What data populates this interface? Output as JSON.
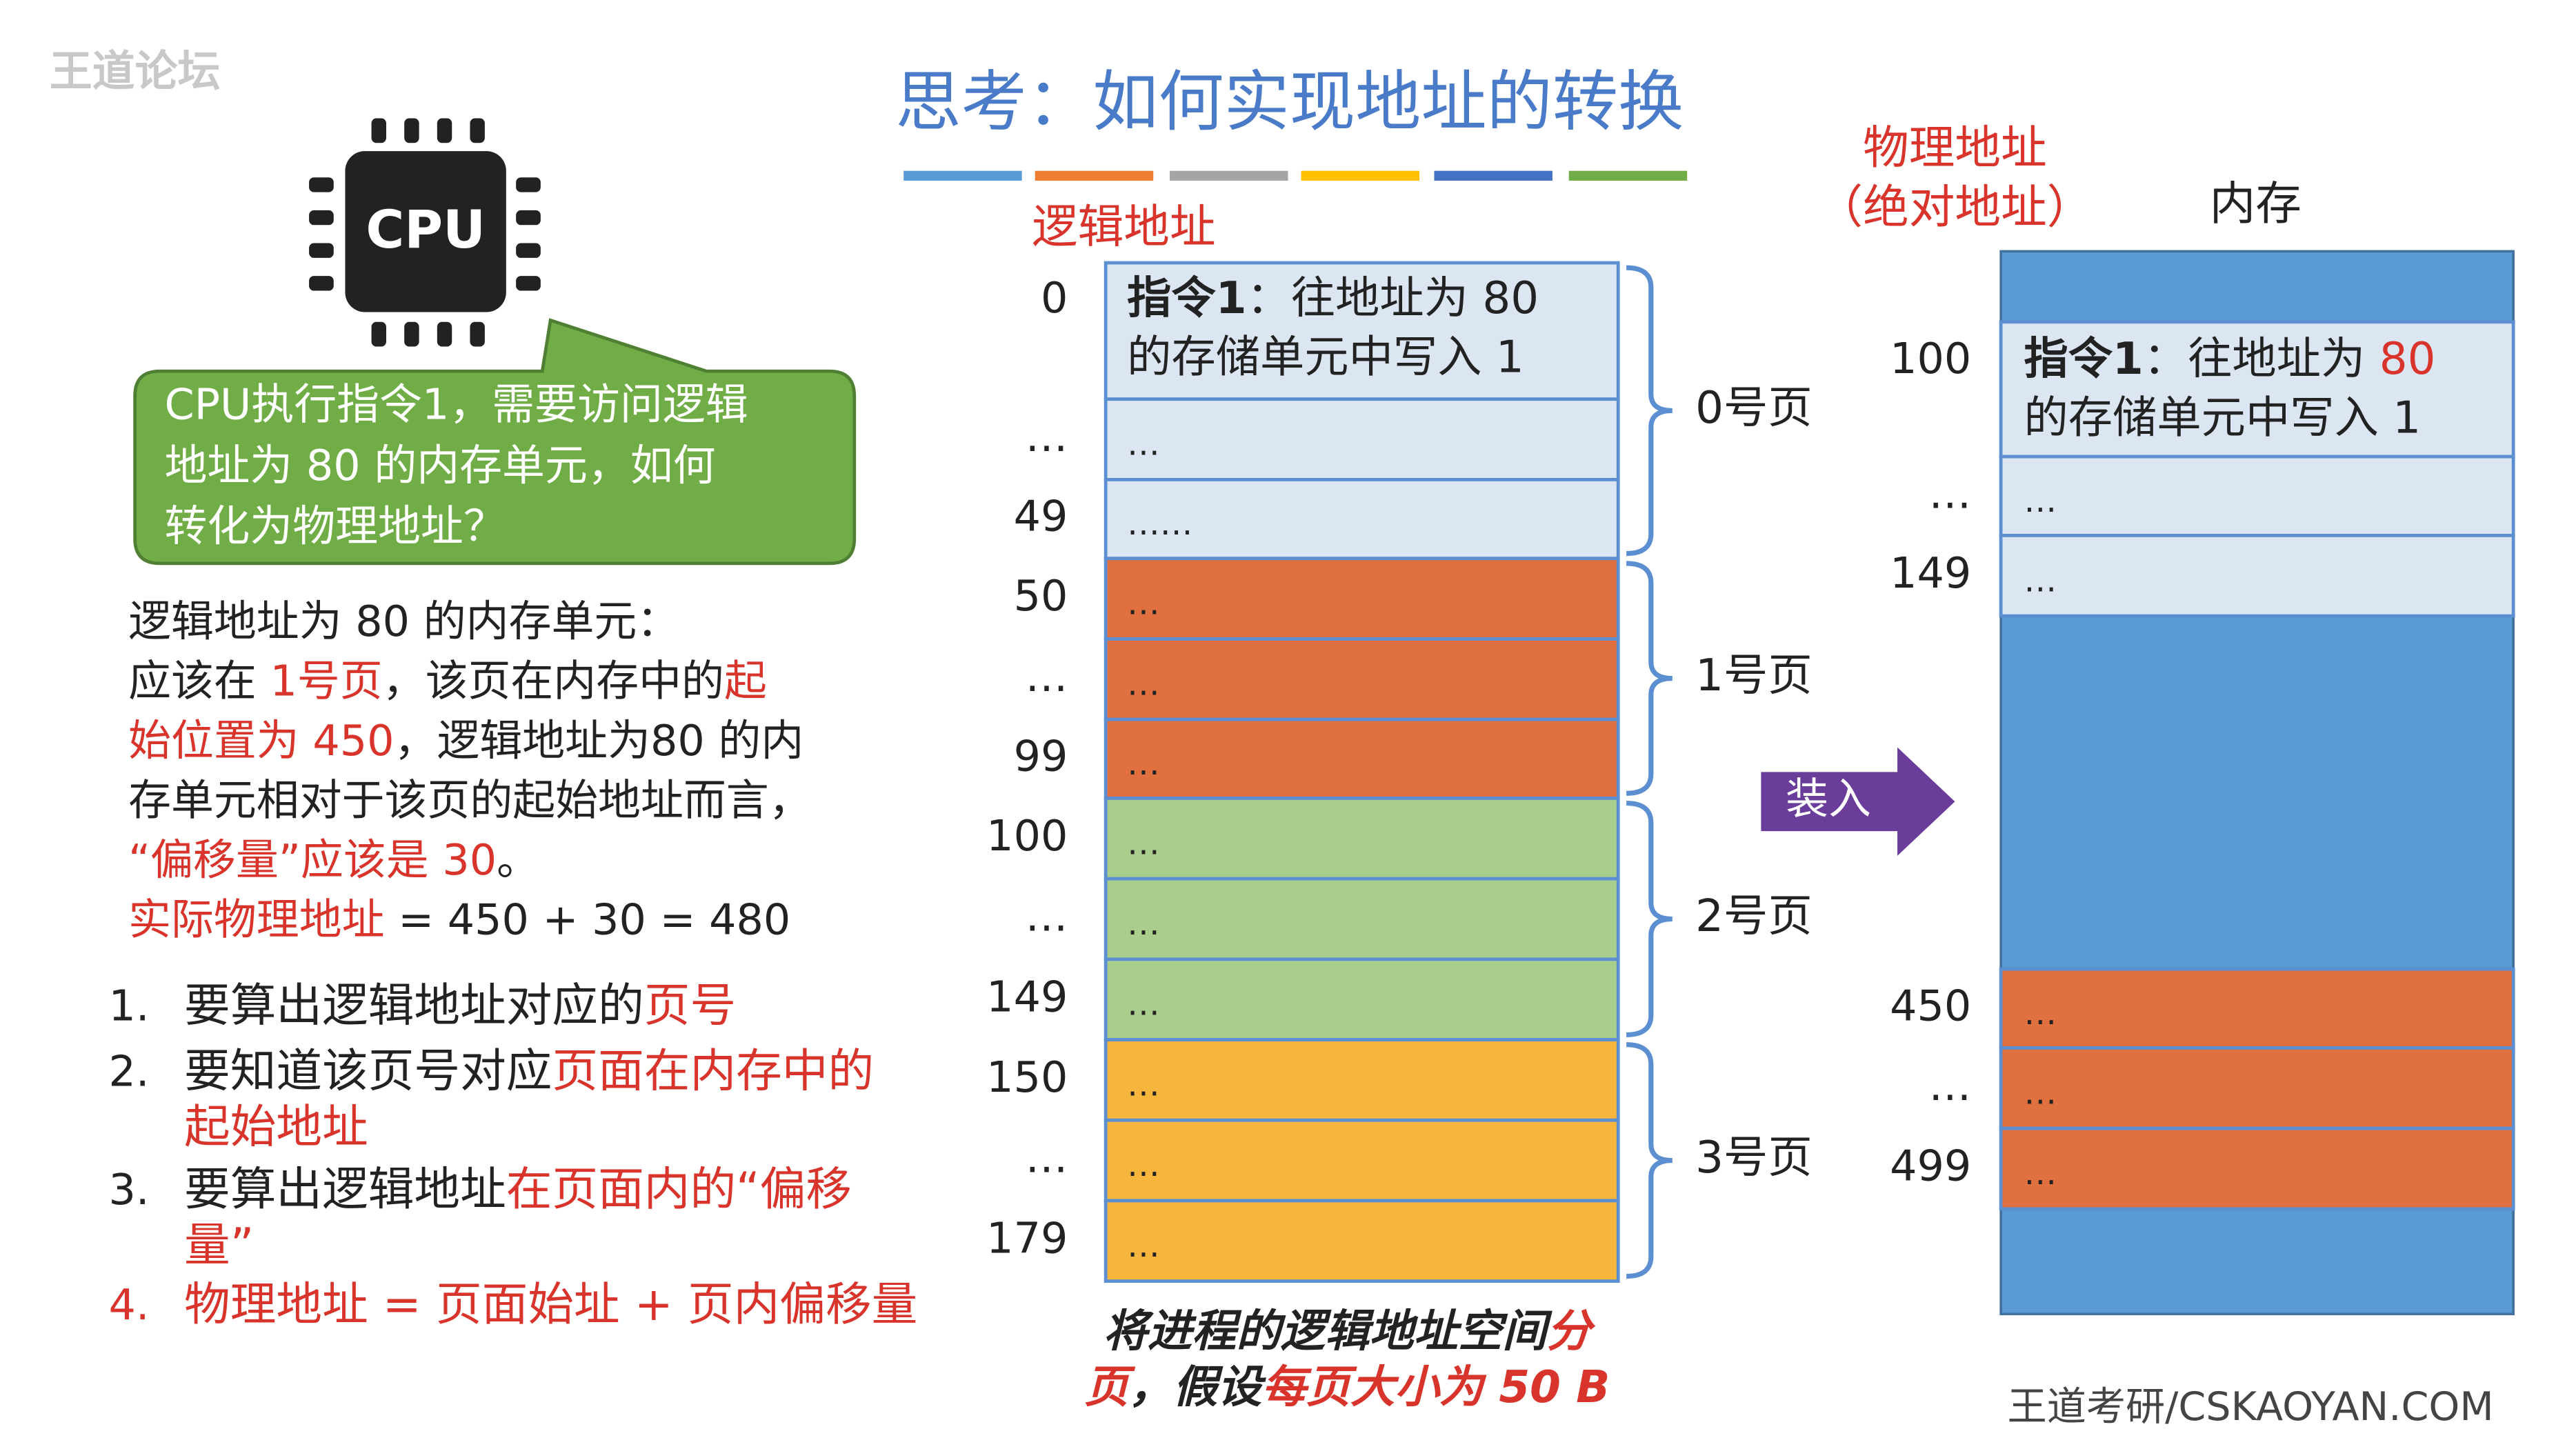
{
  "watermark": "王道论坛",
  "title": "思考：如何实现地址的转换",
  "title_bars": [
    "#5b9bd5",
    "#ed7d31",
    "#a5a5a5",
    "#ffc000",
    "#4472c4",
    "#70ad47"
  ],
  "cpu": {
    "label": "CPU",
    "bubble": [
      "CPU执行指令1，需要访问逻辑",
      "地址为 80 的内存单元，如何",
      "转化为物理地址？"
    ]
  },
  "explanation": [
    [
      "逻辑地址为 80 的内存单元："
    ],
    [
      "应该在 ",
      {
        "text": "1号页",
        "color": "#d9342b"
      },
      "，该页在内存中的",
      {
        "text": "起",
        "color": "#d9342b"
      }
    ],
    [
      {
        "text": "始位置为 450",
        "color": "#d9342b"
      },
      "，逻辑地址为80 的内"
    ],
    [
      "存单元相对于该页的起始地址而言，"
    ],
    [
      {
        "text": "“偏移量”应该是 30",
        "color": "#d9342b"
      },
      "。"
    ],
    [
      {
        "text": "实际物理地址",
        "color": "#d9342b"
      },
      " = 450 + 30 = 480"
    ]
  ],
  "steps": [
    {
      "number": "1.",
      "lines": [
        [
          "要算出逻辑地址对应的",
          {
            "text": "页号",
            "color": "#d9342b"
          }
        ]
      ]
    },
    {
      "number": "2.",
      "lines": [
        [
          "要知道该页号对应",
          {
            "text": "页面在内存中的",
            "color": "#d9342b"
          }
        ],
        [
          {
            "text": "起始地址",
            "color": "#d9342b"
          }
        ]
      ]
    },
    {
      "number": "3.",
      "lines": [
        [
          "要算出逻辑地址",
          {
            "text": "在页面内的“偏移",
            "color": "#d9342b"
          }
        ],
        [
          {
            "text": "量”",
            "color": "#d9342b"
          }
        ]
      ]
    },
    {
      "number": "4.",
      "color": "#d9342b",
      "lines": [
        [
          {
            "text": "物理地址 = 页面始址 + 页内偏移量",
            "color": "#d9342b"
          }
        ]
      ]
    }
  ],
  "logical": {
    "heading": "逻辑地址",
    "rows": [
      {
        "address": "0",
        "color": "#dce6f2",
        "lines": [
          [
            {
              "text": "指令1",
              "bold": true
            },
            "：往地址为 80"
          ],
          [
            "的存储单元中写入 1"
          ]
        ]
      },
      {
        "address": "…",
        "color": "#dce6f2",
        "lines": [
          [
            "…"
          ]
        ]
      },
      {
        "address": "49",
        "color": "#dce6f2",
        "lines": [
          [
            "……"
          ]
        ]
      },
      {
        "address": "50",
        "color": "#e07040",
        "lines": [
          [
            "…"
          ]
        ]
      },
      {
        "address": "…",
        "color": "#e07040",
        "lines": [
          [
            "…"
          ]
        ]
      },
      {
        "address": "99",
        "color": "#e07040",
        "lines": [
          [
            "…"
          ]
        ]
      },
      {
        "address": "100",
        "color": "#a9cd8c",
        "lines": [
          [
            "…"
          ]
        ]
      },
      {
        "address": "…",
        "color": "#a9cd8c",
        "lines": [
          [
            "…"
          ]
        ]
      },
      {
        "address": "149",
        "color": "#a9cd8c",
        "lines": [
          [
            "…"
          ]
        ]
      },
      {
        "address": "150",
        "color": "#f6b53c",
        "lines": [
          [
            "…"
          ]
        ]
      },
      {
        "address": "…",
        "color": "#f6b53c",
        "lines": [
          [
            "…"
          ]
        ]
      },
      {
        "address": "179",
        "color": "#f6b53c",
        "lines": [
          [
            "…"
          ]
        ]
      }
    ],
    "pages": [
      "0号页",
      "1号页",
      "2号页",
      "3号页"
    ],
    "caption": [
      [
        "将进程的逻辑地址空间",
        {
          "text": "分",
          "color": "#d9342b"
        }
      ],
      [
        {
          "text": "页",
          "color": "#d9342b"
        },
        "，假设",
        {
          "text": "每页大小为 50 B",
          "color": "#d9342b"
        }
      ]
    ]
  },
  "load_arrow": "装入",
  "physical": {
    "heading": [
      "物理地址",
      "（绝对地址）"
    ],
    "memory_label": "内存",
    "rows": [
      {
        "address": "100",
        "color": "#dce6f2",
        "lines": [
          [
            {
              "text": "指令1",
              "bold": true
            },
            "：往地址为 ",
            {
              "text": "80",
              "color": "#d9342b"
            }
          ],
          [
            "的存储单元中写入 1"
          ]
        ]
      },
      {
        "address": "…",
        "color": "#dce6f2",
        "lines": [
          [
            "…"
          ]
        ]
      },
      {
        "address": "149",
        "color": "#dce6f2",
        "lines": [
          [
            "…"
          ]
        ]
      },
      {
        "address": "450",
        "color": "#e07040",
        "lines": [
          [
            "…"
          ]
        ]
      },
      {
        "address": "…",
        "color": "#e07040",
        "lines": [
          [
            "…"
          ]
        ]
      },
      {
        "address": "499",
        "color": "#e07040",
        "lines": [
          [
            "…"
          ]
        ]
      }
    ]
  },
  "footer": "王道考研/CSKAOYAN.COM"
}
